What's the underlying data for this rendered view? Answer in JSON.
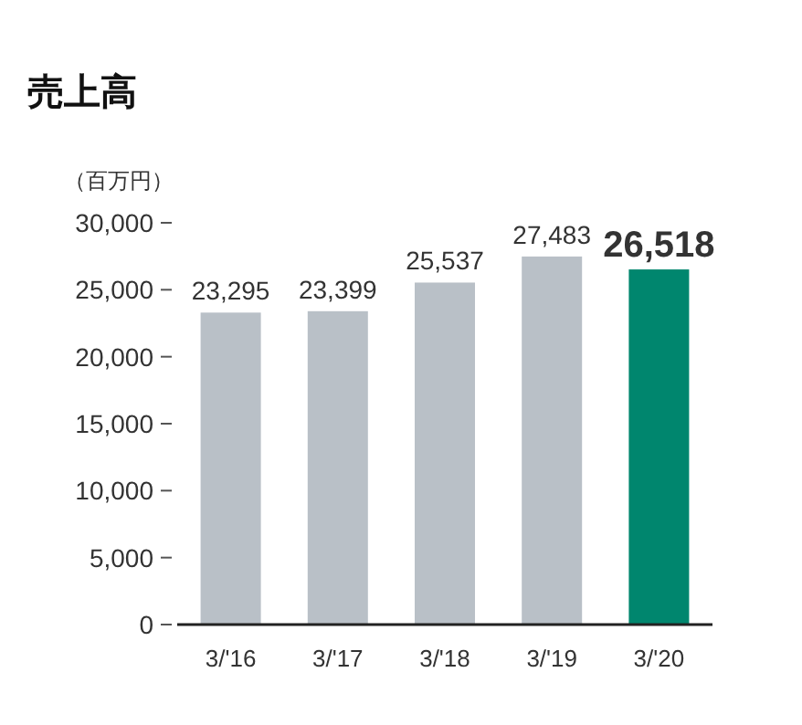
{
  "chart_data": {
    "type": "bar",
    "title": "売上高",
    "ylabel": "（百万円）",
    "categories": [
      "3/'16",
      "3/'17",
      "3/'18",
      "3/'19",
      "3/'20"
    ],
    "values": [
      23295,
      23399,
      25537,
      27483,
      26518
    ],
    "colors": [
      "#b9c0c7",
      "#b9c0c7",
      "#b9c0c7",
      "#b9c0c7",
      "#00866e"
    ],
    "value_labels": [
      "23,295",
      "23,399",
      "25,537",
      "27,483",
      "26,518"
    ],
    "ylim": [
      0,
      30000
    ],
    "yticks": [
      0,
      {
        "value": 5000,
        "label": "5,000"
      },
      {
        "value": 10000,
        "label": "10,000"
      },
      {
        "value": 15000,
        "label": "15,000"
      },
      {
        "value": 20000,
        "label": "20,000"
      },
      {
        "value": 25000,
        "label": "25,000"
      },
      {
        "value": 30000,
        "label": "30,000"
      }
    ],
    "grid": false
  }
}
